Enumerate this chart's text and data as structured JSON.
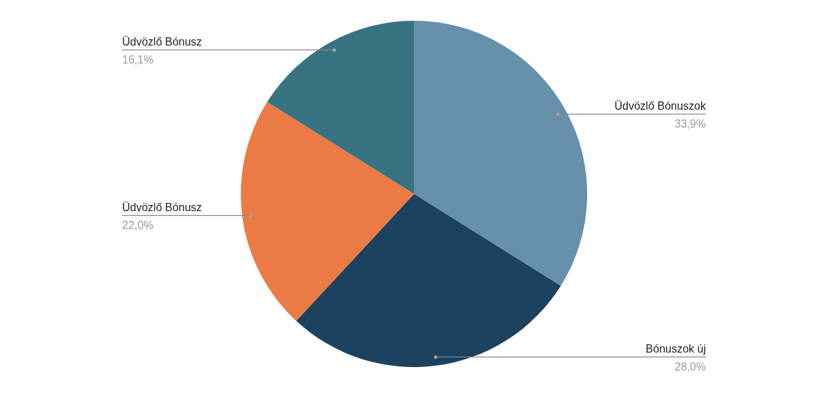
{
  "chart_data": {
    "type": "pie",
    "categories": [
      "Üdvözlő Bónuszok",
      "Bónuszok új",
      "Üdvözlő Bónusz",
      "Üdvözlő Bónusz"
    ],
    "values": [
      33.9,
      28.0,
      22.0,
      16.1
    ],
    "colors": [
      "#6790aa",
      "#1d4260",
      "#ec7a44",
      "#387382"
    ],
    "value_labels": [
      "33,9%",
      "28,0%",
      "22,0%",
      "16,1%"
    ]
  }
}
